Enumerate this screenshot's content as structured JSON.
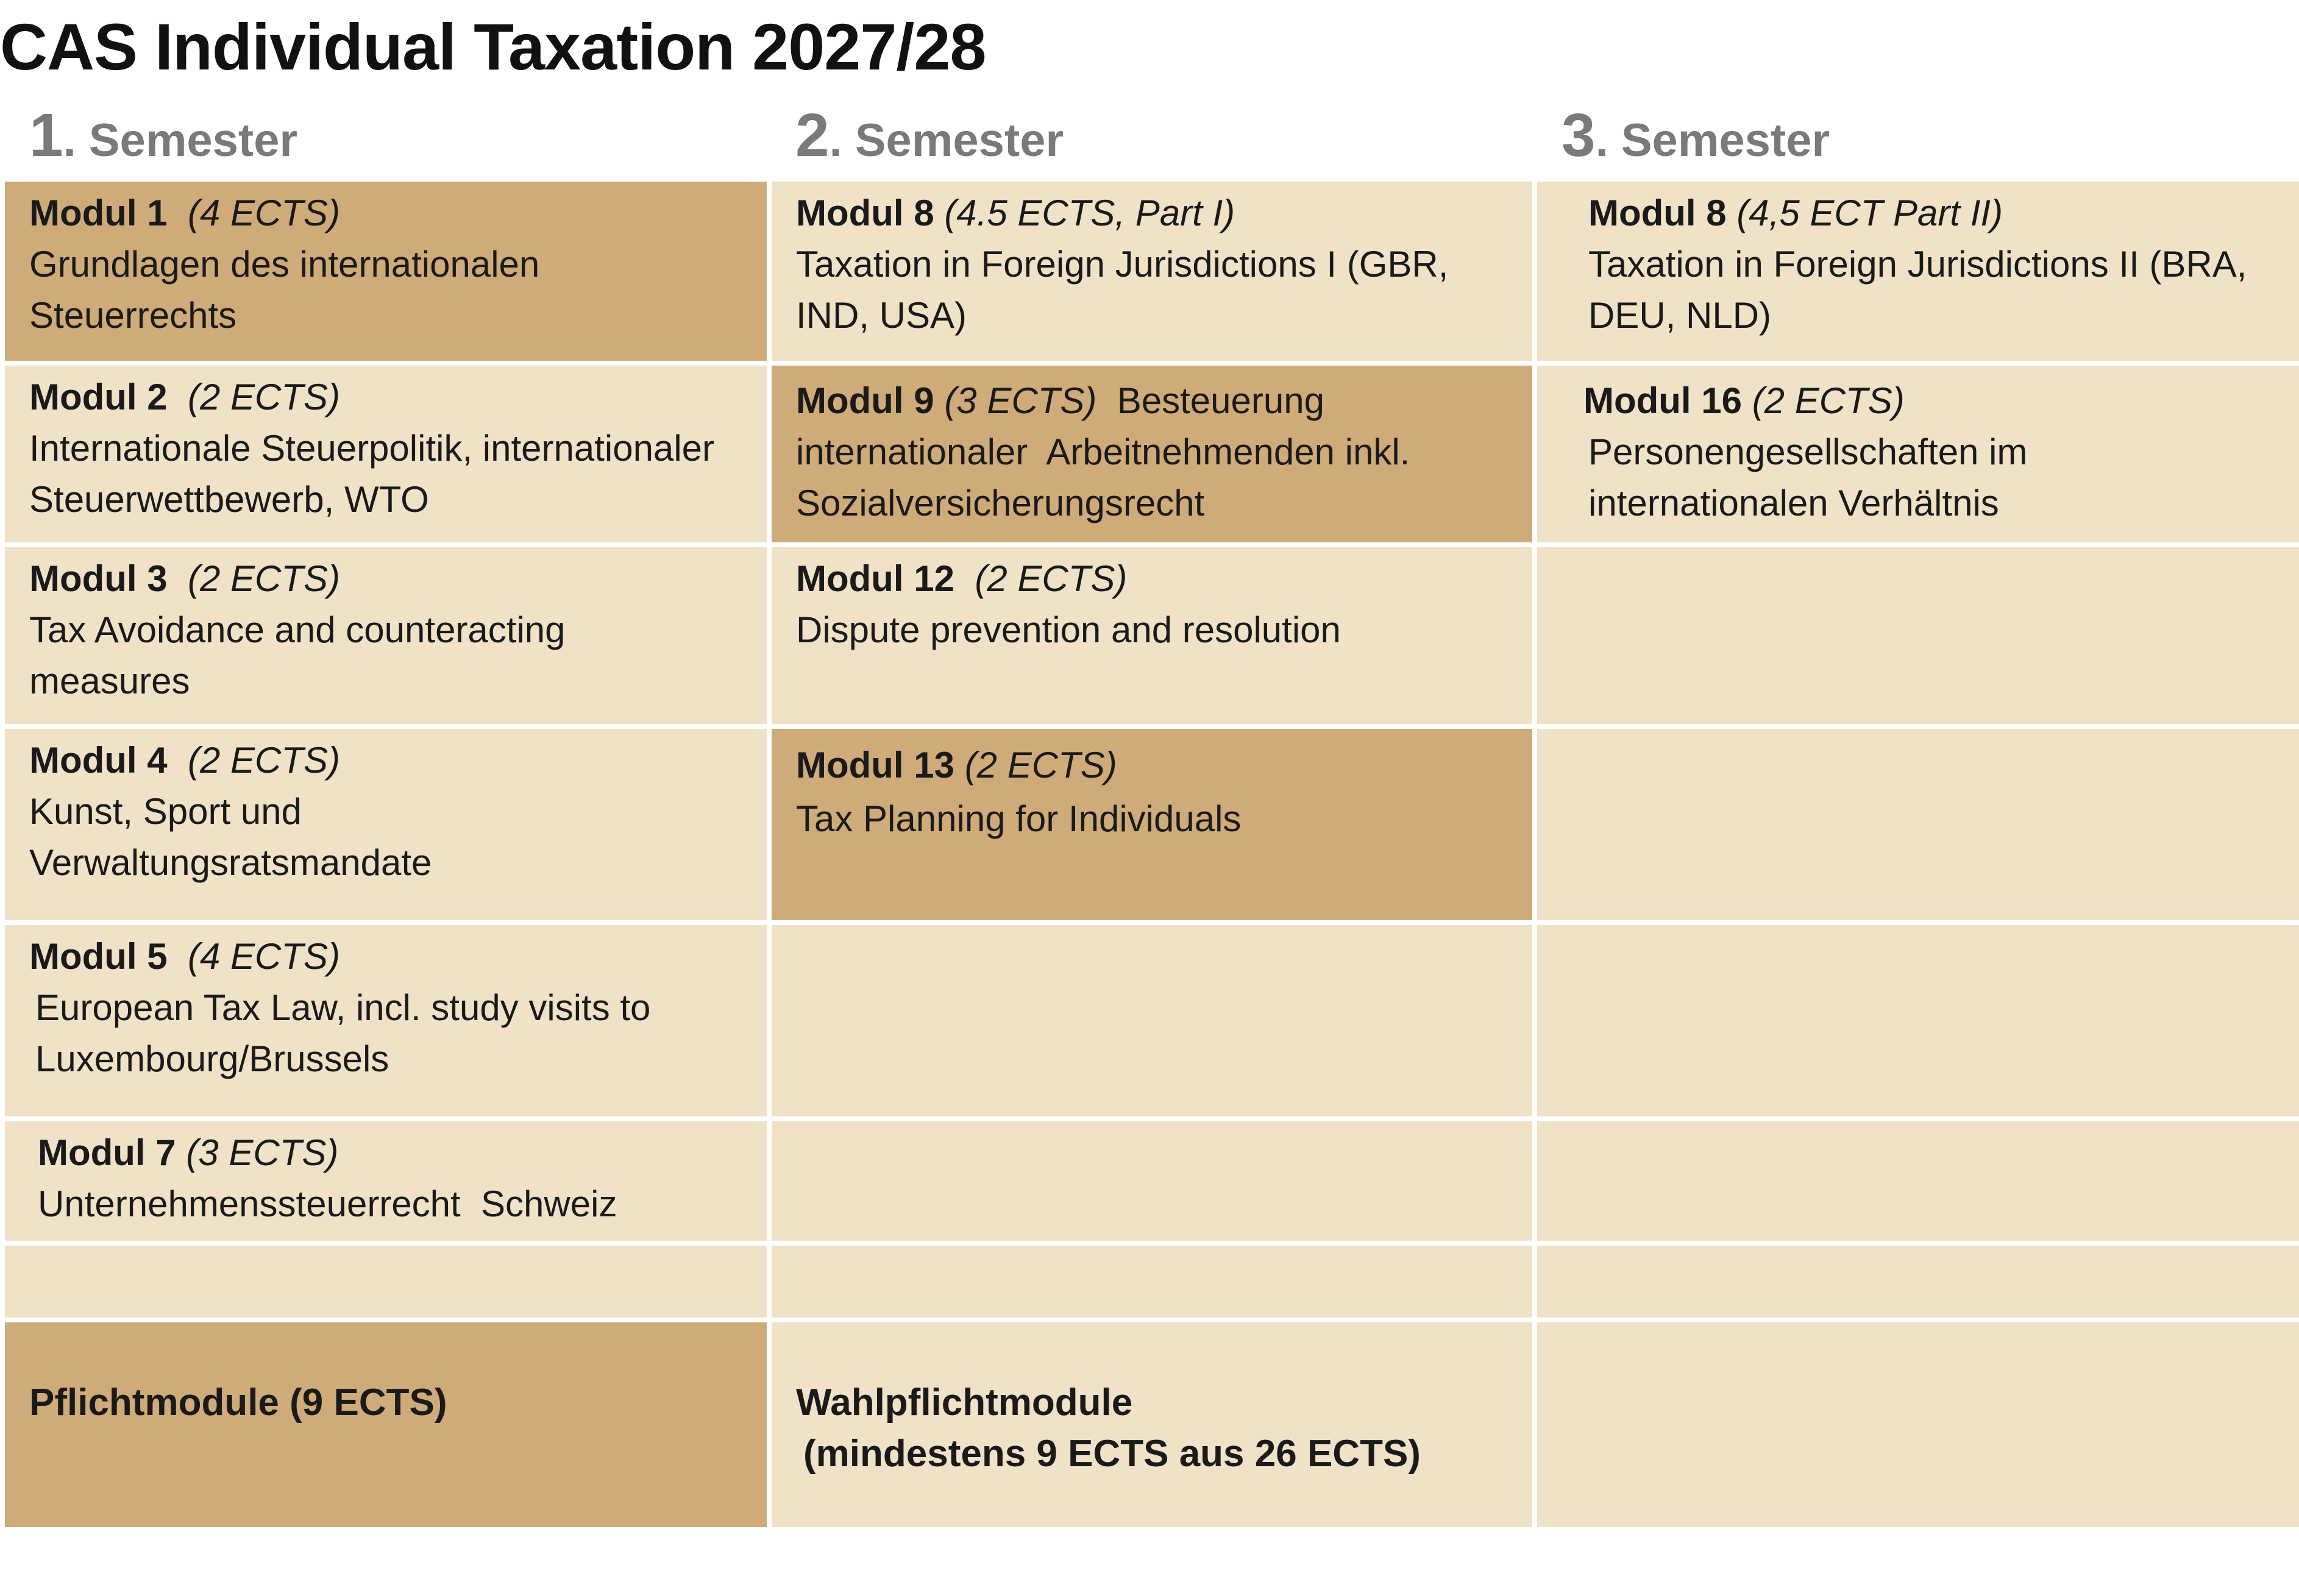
{
  "title": "CAS Individual Taxation 2027/28",
  "semesters": [
    {
      "num": "1",
      "label": "Semester"
    },
    {
      "num": "2",
      "label": "Semester"
    },
    {
      "num": "3",
      "label": "Semester"
    }
  ],
  "col1": [
    {
      "module": "Modul 1",
      "ects": "(4 ECTS)",
      "desc": "Grundlagen des internationalen Steuerrechts"
    },
    {
      "module": "Modul 2",
      "ects": "(2 ECTS)",
      "desc": "Internationale Steuerpolitik, internationaler Steuerwettbewerb, WTO"
    },
    {
      "module": "Modul 3",
      "ects": "(2 ECTS)",
      "desc": "Tax Avoidance and counteracting measures"
    },
    {
      "module": "Modul 4",
      "ects": "(2 ECTS)",
      "desc": "Kunst, Sport und Verwaltungsratsmandate"
    },
    {
      "module": "Modul 5",
      "ects": "(4 ECTS)",
      "desc": "European Tax Law, incl. study visits to Luxembourg/Brussels"
    },
    {
      "module": "Modul 7",
      "ects": "(3 ECTS)",
      "desc": "Unternehmenssteuerrecht  Schweiz"
    }
  ],
  "col2": [
    {
      "module": "Modul 8",
      "ects": "(4.5 ECTS, Part I)",
      "desc": "Taxation in Foreign Jurisdictions I (GBR, IND, USA)"
    },
    {
      "module": "Modul 9",
      "ects": "(3 ECTS)",
      "desc": "Besteuerung internationaler  Arbeitnehmenden inkl. Sozialversicherungsrecht"
    },
    {
      "module": "Modul 12",
      "ects": "(2 ECTS)",
      "desc": "Dispute prevention and resolution"
    },
    {
      "module": "Modul 13",
      "ects": "(2 ECTS)",
      "desc": "Tax Planning for Individuals"
    }
  ],
  "col3": [
    {
      "module": "Modul 8",
      "ects": "(4,5 ECT Part II)",
      "desc": "Taxation in Foreign Jurisdictions II (BRA, DEU, NLD)"
    },
    {
      "module": "Modul 16",
      "ects": "(2 ECTS)",
      "desc": "Personengesellschaften im internationalen Verhältnis"
    }
  ],
  "footer": {
    "pflicht": "Pflichtmodule (9 ECTS)",
    "wahl_line1": "Wahlpflichtmodule",
    "wahl_line2": "(mindestens 9 ECTS aus 26 ECTS)"
  },
  "colors": {
    "light": "#efe2c7",
    "dark": "#cfab79",
    "semester_gray": "#7a7a7a"
  }
}
